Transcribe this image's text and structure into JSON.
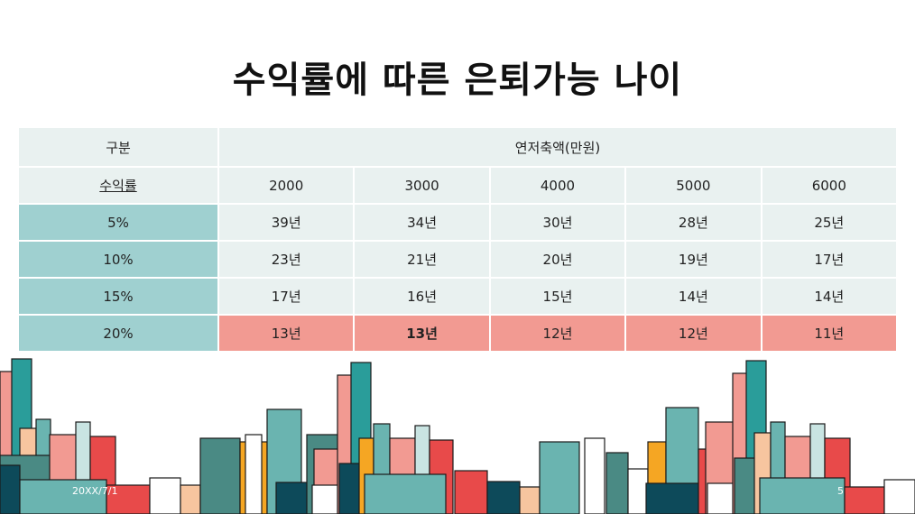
{
  "slide": {
    "title": "수익률에 따른 은퇴가능 나이",
    "footer_date": "20XX/7/1",
    "page_number": "5"
  },
  "table": {
    "header": {
      "label": "구분",
      "group": "연저축액(만원)"
    },
    "subheader": {
      "label": "수익률",
      "amounts": [
        "2000",
        "3000",
        "4000",
        "5000",
        "6000"
      ]
    },
    "rows": [
      {
        "rate": "5%",
        "values": [
          "39년",
          "34년",
          "30년",
          "28년",
          "25년"
        ]
      },
      {
        "rate": "10%",
        "values": [
          "23년",
          "21년",
          "20년",
          "19년",
          "17년"
        ]
      },
      {
        "rate": "15%",
        "values": [
          "17년",
          "16년",
          "15년",
          "14년",
          "14년"
        ]
      },
      {
        "rate": "20%",
        "values": [
          "13년",
          "13년",
          "12년",
          "12년",
          "11년"
        ]
      }
    ],
    "highlight_color": "#f29a92",
    "rate_column_color": "#9fd0d0",
    "cell_color": "#e9f1f0"
  },
  "decoration": {
    "palette": [
      "#f29a92",
      "#e84a4a",
      "#6ab4b0",
      "#2a9d9a",
      "#0d4a5a",
      "#f5a623",
      "#f7c59f",
      "#c9e4e2",
      "#4a8a84"
    ]
  }
}
